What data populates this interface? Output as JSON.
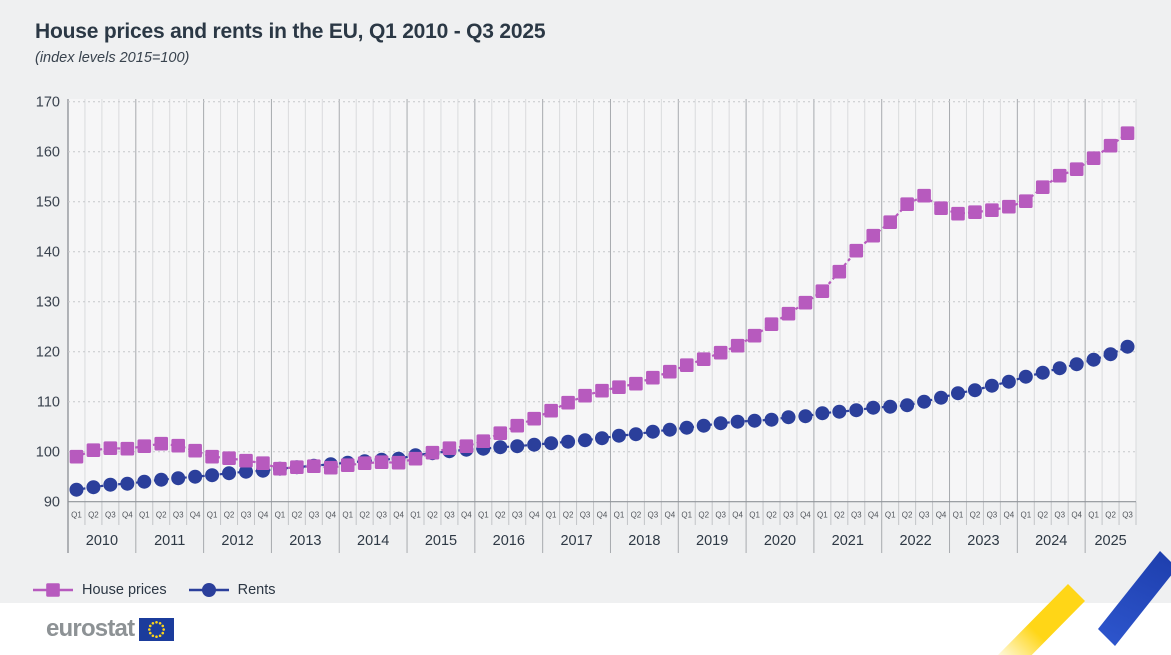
{
  "header": {
    "title": "House prices and rents in the EU, Q1 2010 - Q3 2025",
    "subtitle": "(index levels 2015=100)"
  },
  "chart_data": {
    "type": "line",
    "title": "House prices and rents in the EU, Q1 2010 - Q3 2025",
    "subtitle": "(index levels 2015=100)",
    "xlabel": "",
    "ylabel": "",
    "ylim": [
      90,
      170
    ],
    "yticks": [
      90,
      100,
      110,
      120,
      130,
      140,
      150,
      160,
      170
    ],
    "grid": true,
    "legend_position": "bottom-left",
    "x_axis_years": [
      {
        "label": "2010",
        "quarters": [
          "Q1",
          "Q2",
          "Q3",
          "Q4"
        ]
      },
      {
        "label": "2011",
        "quarters": [
          "Q1",
          "Q2",
          "Q3",
          "Q4"
        ]
      },
      {
        "label": "2012",
        "quarters": [
          "Q1",
          "Q2",
          "Q3",
          "Q4"
        ]
      },
      {
        "label": "2013",
        "quarters": [
          "Q1",
          "Q2",
          "Q3",
          "Q4"
        ]
      },
      {
        "label": "2014",
        "quarters": [
          "Q1",
          "Q2",
          "Q3",
          "Q4"
        ]
      },
      {
        "label": "2015",
        "quarters": [
          "Q1",
          "Q2",
          "Q3",
          "Q4"
        ]
      },
      {
        "label": "2016",
        "quarters": [
          "Q1",
          "Q2",
          "Q3",
          "Q4"
        ]
      },
      {
        "label": "2017",
        "quarters": [
          "Q1",
          "Q2",
          "Q3",
          "Q4"
        ]
      },
      {
        "label": "2018",
        "quarters": [
          "Q1",
          "Q2",
          "Q3",
          "Q4"
        ]
      },
      {
        "label": "2019",
        "quarters": [
          "Q1",
          "Q2",
          "Q3",
          "Q4"
        ]
      },
      {
        "label": "2020",
        "quarters": [
          "Q1",
          "Q2",
          "Q3",
          "Q4"
        ]
      },
      {
        "label": "2021",
        "quarters": [
          "Q1",
          "Q2",
          "Q3",
          "Q4"
        ]
      },
      {
        "label": "2022",
        "quarters": [
          "Q1",
          "Q2",
          "Q3",
          "Q4"
        ]
      },
      {
        "label": "2023",
        "quarters": [
          "Q1",
          "Q2",
          "Q3",
          "Q4"
        ]
      },
      {
        "label": "2024",
        "quarters": [
          "Q1",
          "Q2",
          "Q3",
          "Q4"
        ]
      },
      {
        "label": "2025",
        "quarters": [
          "Q1",
          "Q2",
          "Q3"
        ]
      }
    ],
    "series": [
      {
        "name": "House prices",
        "marker": "square",
        "color": "#b75abe",
        "values": [
          99.0,
          100.3,
          100.7,
          100.6,
          101.1,
          101.6,
          101.2,
          100.2,
          99.0,
          98.7,
          98.2,
          97.7,
          96.6,
          96.9,
          97.1,
          96.8,
          97.3,
          97.7,
          97.9,
          97.8,
          98.6,
          99.8,
          100.7,
          101.1,
          102.1,
          103.7,
          105.2,
          106.6,
          108.2,
          109.8,
          111.2,
          112.2,
          112.9,
          113.6,
          114.8,
          116.0,
          117.3,
          118.5,
          119.8,
          121.2,
          123.2,
          125.5,
          127.6,
          129.8,
          132.1,
          136.0,
          140.2,
          143.2,
          145.9,
          149.5,
          151.2,
          148.7,
          147.6,
          147.9,
          148.3,
          149.0,
          150.1,
          152.9,
          155.2,
          156.5,
          158.7,
          161.2,
          163.7
        ]
      },
      {
        "name": "Rents",
        "marker": "circle",
        "color": "#2b3f9b",
        "values": [
          92.4,
          92.9,
          93.4,
          93.6,
          94.0,
          94.4,
          94.7,
          95.0,
          95.3,
          95.7,
          96.0,
          96.2,
          96.6,
          96.9,
          97.2,
          97.5,
          97.8,
          98.1,
          98.4,
          98.6,
          99.3,
          99.7,
          100.1,
          100.4,
          100.6,
          100.9,
          101.1,
          101.4,
          101.7,
          102.0,
          102.3,
          102.7,
          103.2,
          103.5,
          104.0,
          104.4,
          104.8,
          105.2,
          105.7,
          106.0,
          106.2,
          106.4,
          106.9,
          107.1,
          107.7,
          108.0,
          108.3,
          108.8,
          109.0,
          109.3,
          110.0,
          110.8,
          111.7,
          112.3,
          113.2,
          114.0,
          115.0,
          115.8,
          116.7,
          117.5,
          118.4,
          119.5,
          121.0
        ]
      }
    ]
  },
  "footer": {
    "logo_text": "eurostat",
    "flag_blue": "#1b3c9c",
    "star_yellow": "#ffd617"
  },
  "decor": {
    "zigzag_yellow": "#ffd617",
    "zigzag_gray_light": "#ececed",
    "zigzag_gray": "#a3a5a8",
    "zigzag_blue": "#2d55cc",
    "zigzag_blue_dark": "#1e3fae"
  }
}
